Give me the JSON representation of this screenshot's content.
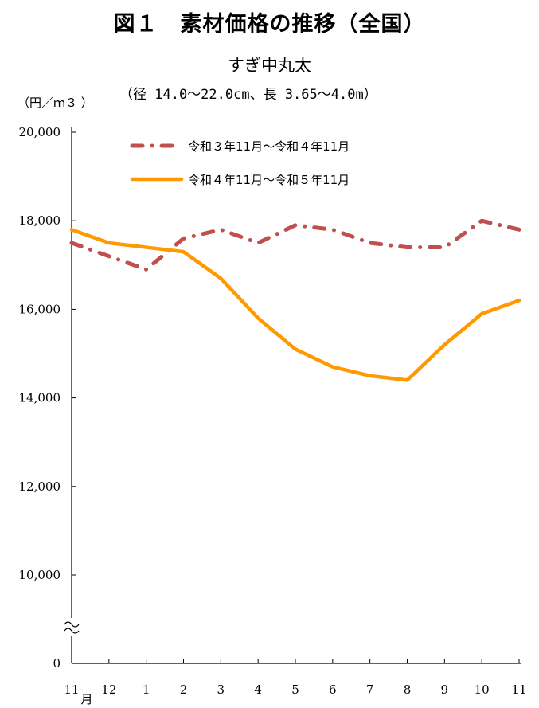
{
  "chart_data": {
    "type": "line",
    "title": "図１　素材価格の推移（全国）",
    "subtitle": "すぎ中丸太",
    "spec": "（径 14.0～22.0cm、長 3.65～4.0m）",
    "ylabel": "（円／ｍ３ ）",
    "xlabel_unit": "月",
    "categories": [
      "11",
      "12",
      "1",
      "2",
      "3",
      "4",
      "5",
      "6",
      "7",
      "8",
      "9",
      "10",
      "11"
    ],
    "y_ticks": [
      {
        "value": 20000,
        "label": "20,000"
      },
      {
        "value": 18000,
        "label": "18,000"
      },
      {
        "value": 16000,
        "label": "16,000"
      },
      {
        "value": 14000,
        "label": "14,000"
      },
      {
        "value": 12000,
        "label": "12,000"
      },
      {
        "value": 10000,
        "label": "10,000"
      },
      {
        "value": 0,
        "label": "0"
      }
    ],
    "ylim": [
      0,
      20000
    ],
    "axis_break": [
      0,
      10000
    ],
    "legend_position": "top",
    "series": [
      {
        "name": "令和３年11月～令和４年11月",
        "style": "dash-dot",
        "color": "#C0504D",
        "values": [
          17500,
          17200,
          16900,
          17600,
          17800,
          17500,
          17900,
          17800,
          17500,
          17400,
          17400,
          18000,
          17800
        ]
      },
      {
        "name": "令和４年11月～令和５年11月",
        "style": "solid",
        "color": "#FF9900",
        "values": [
          17800,
          17500,
          17400,
          17300,
          16700,
          15800,
          15100,
          14700,
          14500,
          14400,
          15200,
          15900,
          16200
        ]
      }
    ]
  }
}
